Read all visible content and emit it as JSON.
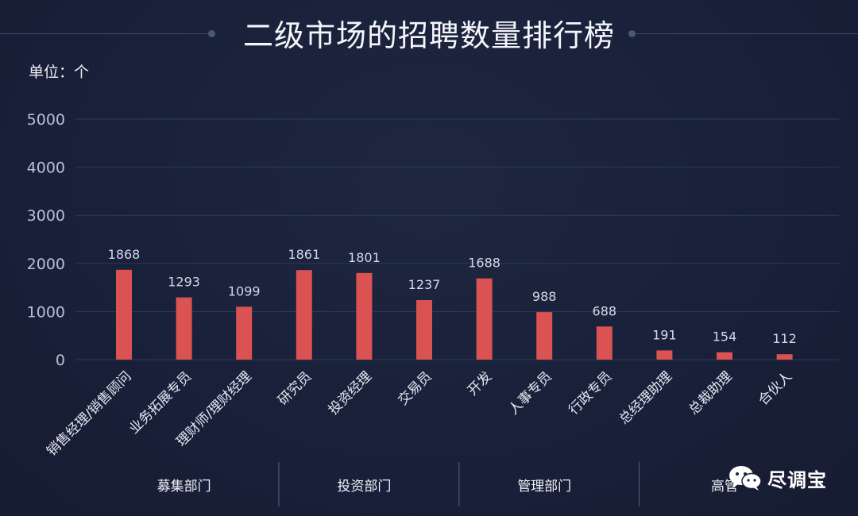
{
  "title": "二级市场的招聘数量排行榜",
  "unit": "单位：个",
  "watermark": {
    "text": "尽调宝",
    "icon": "wechat-icon"
  },
  "colors": {
    "bar": "#db5252",
    "background": "#1a2139",
    "grid": "#2f3a56"
  },
  "chart_data": {
    "type": "bar",
    "title": "二级市场的招聘数量排行榜",
    "ylabel": "单位：个",
    "xlabel": "",
    "ylim": [
      0,
      5000
    ],
    "yticks": [
      0,
      1000,
      2000,
      3000,
      4000,
      5000
    ],
    "grid": true,
    "categories": [
      "销售经理/销售顾问",
      "业务拓展专员",
      "理财师/理财经理",
      "研究员",
      "投资经理",
      "交易员",
      "开发",
      "人事专员",
      "行政专员",
      "总经理助理",
      "总裁助理",
      "合伙人"
    ],
    "values": [
      1868,
      1293,
      1099,
      1861,
      1801,
      1237,
      1688,
      988,
      688,
      191,
      154,
      112
    ],
    "groups": [
      {
        "name": "募集部门",
        "members": [
          "销售经理/销售顾问",
          "业务拓展专员",
          "理财师/理财经理"
        ]
      },
      {
        "name": "投资部门",
        "members": [
          "研究员",
          "投资经理",
          "交易员"
        ]
      },
      {
        "name": "管理部门",
        "members": [
          "开发",
          "人事专员",
          "行政专员"
        ]
      },
      {
        "name": "高管",
        "members": [
          "总经理助理",
          "总裁助理",
          "合伙人"
        ]
      }
    ]
  }
}
